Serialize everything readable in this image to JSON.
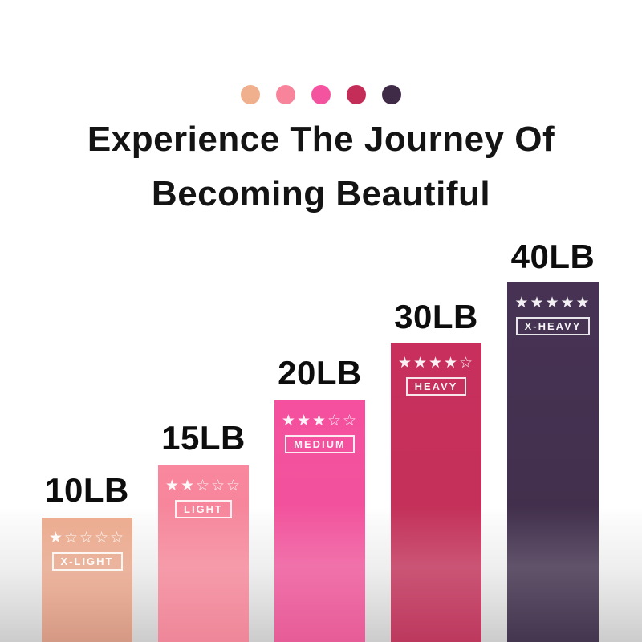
{
  "palette": {
    "dot_colors": [
      "#F0AF8D",
      "#F8849B",
      "#F4549F",
      "#C52D59",
      "#3F2B47"
    ]
  },
  "title": {
    "line1": "Experience The Journey Of",
    "line2": "Becoming Beautiful"
  },
  "chart_data": {
    "type": "bar",
    "title": "Experience The Journey Of Becoming Beautiful",
    "categories": [
      "10LB",
      "15LB",
      "20LB",
      "30LB",
      "40LB"
    ],
    "values": [
      10,
      15,
      20,
      30,
      40
    ],
    "unit": "LB",
    "xlabel": "",
    "ylabel": "",
    "grid": false,
    "legend": false,
    "bars": [
      {
        "weight_label": "10LB",
        "rating": 1,
        "stars_display": "★☆☆☆☆",
        "level_label": "X-LIGHT",
        "color_top": "#ECAA8D",
        "color_bottom": "#D2937D"
      },
      {
        "weight_label": "15LB",
        "rating": 2,
        "stars_display": "★★☆☆☆",
        "level_label": "LIGHT",
        "color_top": "#F9879E",
        "color_bottom": "#ED8093"
      },
      {
        "weight_label": "20LB",
        "rating": 3,
        "stars_display": "★★★☆☆",
        "level_label": "MEDIUM",
        "color_top": "#F5509F",
        "color_bottom": "#E55391"
      },
      {
        "weight_label": "30LB",
        "rating": 4,
        "stars_display": "★★★★☆",
        "level_label": "HEAVY",
        "color_top": "#C82F5D",
        "color_bottom": "#B92E55"
      },
      {
        "weight_label": "40LB",
        "rating": 5,
        "stars_display": "★★★★★",
        "level_label": "X-HEAVY",
        "color_top": "#473254",
        "color_bottom": "#3A2B45"
      }
    ]
  }
}
